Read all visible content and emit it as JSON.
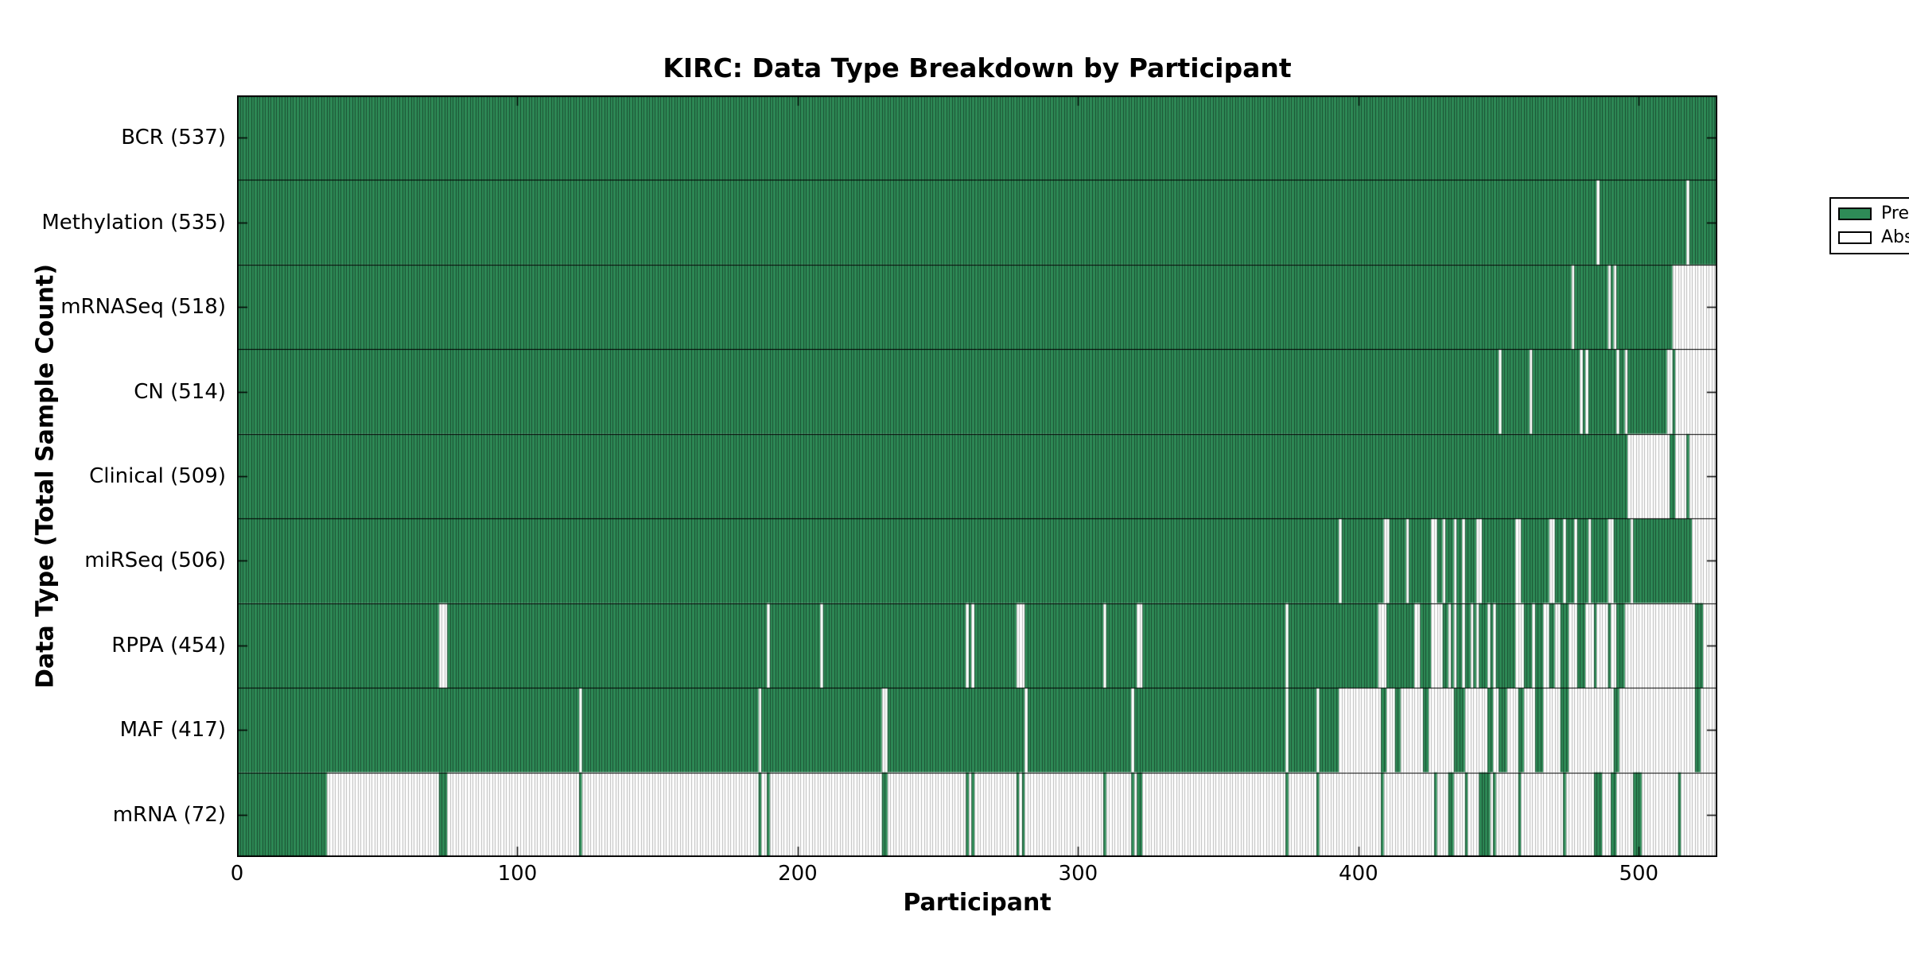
{
  "chart": {
    "title": "KIRC: Data Type Breakdown by Participant",
    "xlabel": "Participant",
    "ylabel": "Data Type (Total Sample Count)",
    "legend": {
      "present_label": "Present",
      "absent_label": "Absent"
    }
  },
  "chart_data": {
    "type": "heatmap",
    "title": "KIRC: Data Type Breakdown by Participant",
    "xlabel": "Participant",
    "ylabel": "Data Type (Total Sample Count)",
    "x_ticks": [
      0,
      100,
      200,
      300,
      400,
      500
    ],
    "xlim": [
      0,
      528
    ],
    "n_participants": 528,
    "grid": false,
    "legend_position": "upper-right",
    "colors": {
      "present": "#2e8b57",
      "absent": "#ffffff",
      "present_edge": "rgba(0,0,0,0.45)",
      "absent_edge": "#b9b9b9",
      "row_separator": "#000000",
      "border": "#000000"
    },
    "legend_entries": [
      {
        "label": "Present",
        "color": "#2e8b57"
      },
      {
        "label": "Absent",
        "color": "#ffffff"
      }
    ],
    "rows": [
      {
        "label": "BCR (537)",
        "data_type": "BCR",
        "sample_count": 537,
        "fill": "present",
        "absent_ranges": []
      },
      {
        "label": "Methylation (535)",
        "data_type": "Methylation",
        "sample_count": 535,
        "fill": "present",
        "absent_ranges": [
          [
            485,
            485
          ],
          [
            517,
            517
          ]
        ]
      },
      {
        "label": "mRNASeq (518)",
        "data_type": "mRNASeq",
        "sample_count": 518,
        "fill": "present",
        "absent_ranges": [
          [
            476,
            476
          ],
          [
            489,
            489
          ],
          [
            491,
            491
          ],
          [
            512,
            527
          ]
        ]
      },
      {
        "label": "CN (514)",
        "data_type": "CN",
        "sample_count": 514,
        "fill": "present",
        "absent_ranges": [
          [
            450,
            450
          ],
          [
            461,
            461
          ],
          [
            479,
            479
          ],
          [
            481,
            481
          ],
          [
            492,
            492
          ],
          [
            495,
            495
          ],
          [
            510,
            511
          ],
          [
            513,
            527
          ]
        ]
      },
      {
        "label": "Clinical (509)",
        "data_type": "Clinical",
        "sample_count": 509,
        "fill": "present",
        "absent_ranges": [
          [
            496,
            510
          ],
          [
            513,
            516
          ],
          [
            518,
            527
          ]
        ]
      },
      {
        "label": "miRSeq (506)",
        "data_type": "miRSeq",
        "sample_count": 506,
        "fill": "present",
        "absent_ranges": [
          [
            393,
            393
          ],
          [
            409,
            410
          ],
          [
            417,
            417
          ],
          [
            426,
            427
          ],
          [
            430,
            430
          ],
          [
            434,
            434
          ],
          [
            437,
            437
          ],
          [
            442,
            443
          ],
          [
            456,
            457
          ],
          [
            468,
            469
          ],
          [
            473,
            473
          ],
          [
            477,
            477
          ],
          [
            482,
            482
          ],
          [
            489,
            490
          ],
          [
            497,
            497
          ],
          [
            519,
            527
          ]
        ]
      },
      {
        "label": "RPPA (454)",
        "data_type": "RPPA",
        "sample_count": 454,
        "fill": "present",
        "absent_ranges": [
          [
            72,
            74
          ],
          [
            189,
            189
          ],
          [
            208,
            208
          ],
          [
            260,
            260
          ],
          [
            262,
            262
          ],
          [
            278,
            280
          ],
          [
            309,
            309
          ],
          [
            321,
            322
          ],
          [
            374,
            374
          ],
          [
            407,
            409
          ],
          [
            420,
            421
          ],
          [
            426,
            429
          ],
          [
            432,
            432
          ],
          [
            434,
            434
          ],
          [
            437,
            437
          ],
          [
            440,
            440
          ],
          [
            442,
            442
          ],
          [
            446,
            446
          ],
          [
            448,
            448
          ],
          [
            456,
            458
          ],
          [
            462,
            462
          ],
          [
            466,
            467
          ],
          [
            470,
            471
          ],
          [
            475,
            477
          ],
          [
            481,
            483
          ],
          [
            485,
            488
          ],
          [
            490,
            491
          ],
          [
            495,
            519
          ],
          [
            523,
            527
          ]
        ]
      },
      {
        "label": "MAF (417)",
        "data_type": "MAF",
        "sample_count": 417,
        "fill": "present",
        "absent_ranges": [
          [
            122,
            122
          ],
          [
            186,
            186
          ],
          [
            230,
            231
          ],
          [
            281,
            281
          ],
          [
            319,
            319
          ],
          [
            374,
            374
          ],
          [
            385,
            385
          ],
          [
            393,
            407
          ],
          [
            410,
            412
          ],
          [
            415,
            422
          ],
          [
            425,
            433
          ],
          [
            438,
            445
          ],
          [
            448,
            449
          ],
          [
            453,
            456
          ],
          [
            459,
            462
          ],
          [
            466,
            471
          ],
          [
            475,
            490
          ],
          [
            493,
            519
          ],
          [
            522,
            527
          ]
        ]
      },
      {
        "label": "mRNA (72)",
        "data_type": "mRNA",
        "sample_count": 72,
        "fill": "absent",
        "present_ranges": [
          [
            0,
            31
          ],
          [
            72,
            74
          ],
          [
            122,
            122
          ],
          [
            186,
            186
          ],
          [
            189,
            189
          ],
          [
            230,
            231
          ],
          [
            260,
            260
          ],
          [
            262,
            262
          ],
          [
            278,
            278
          ],
          [
            280,
            280
          ],
          [
            309,
            309
          ],
          [
            319,
            319
          ],
          [
            321,
            322
          ],
          [
            374,
            374
          ],
          [
            385,
            385
          ],
          [
            408,
            408
          ],
          [
            427,
            427
          ],
          [
            432,
            433
          ],
          [
            438,
            438
          ],
          [
            443,
            446
          ],
          [
            448,
            448
          ],
          [
            457,
            457
          ],
          [
            473,
            473
          ],
          [
            484,
            486
          ],
          [
            490,
            491
          ],
          [
            498,
            500
          ],
          [
            514,
            514
          ]
        ]
      }
    ]
  }
}
